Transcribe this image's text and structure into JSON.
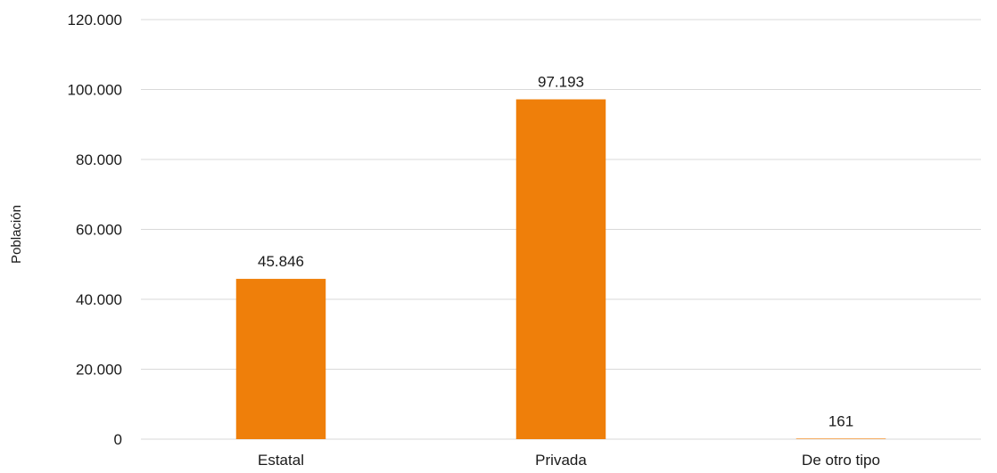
{
  "chart_data": {
    "type": "bar",
    "title": "",
    "xlabel": "",
    "ylabel": "Población",
    "categories": [
      "Estatal",
      "Privada",
      "De otro tipo"
    ],
    "values": [
      45846,
      97193,
      161
    ],
    "data_labels": [
      "45.846",
      "97.193",
      "161"
    ],
    "ylim": [
      0,
      120000
    ],
    "yticks": [
      0,
      20000,
      40000,
      60000,
      80000,
      100000,
      120000
    ],
    "ytick_labels": [
      "0",
      "20.000",
      "40.000",
      "60.000",
      "80.000",
      "100.000",
      "120.000"
    ],
    "grid": true,
    "legend": "none",
    "bar_color": "#ef7f0a",
    "grid_color": "#d9d9d9"
  }
}
